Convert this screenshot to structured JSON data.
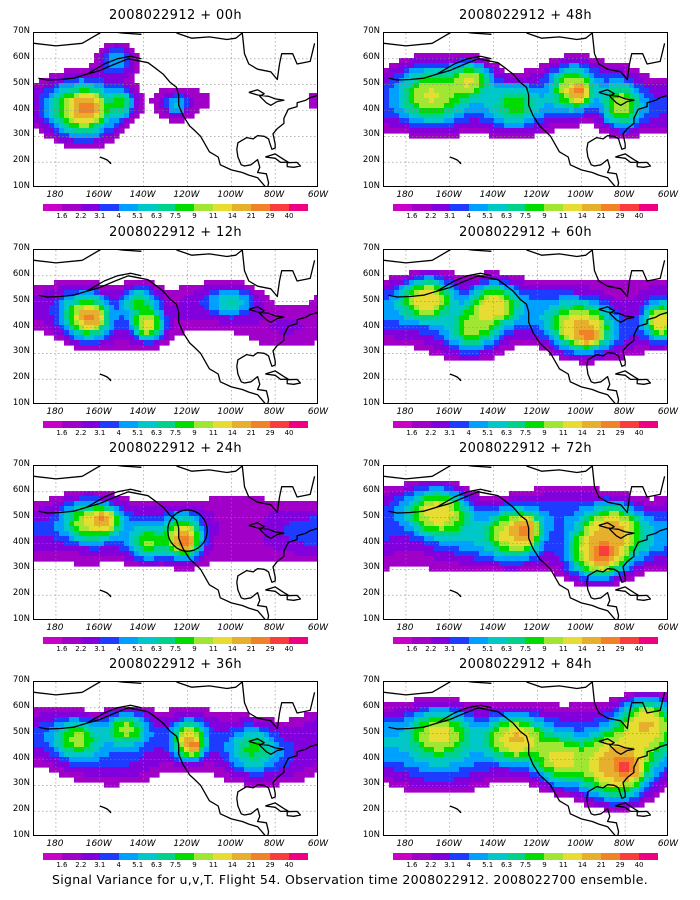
{
  "panels": [
    {
      "title": "2008022912 + 00h",
      "lead": "00h",
      "col": 0,
      "row": 0,
      "level": 0.1,
      "blobs": [
        [
          -168,
          40,
          14,
          10,
          11
        ],
        [
          -166,
          41,
          5,
          4,
          16
        ],
        [
          -150,
          43,
          5,
          5,
          6
        ],
        [
          -152,
          60,
          8,
          6,
          4
        ],
        [
          -125,
          42,
          5,
          4,
          4
        ]
      ],
      "circle": null
    },
    {
      "title": "2008022912 + 48h",
      "lead": "48h",
      "col": 1,
      "row": 0,
      "level": 0.45,
      "blobs": [
        [
          -168,
          45,
          14,
          10,
          9
        ],
        [
          -150,
          52,
          8,
          6,
          8
        ],
        [
          -104,
          48,
          9,
          8,
          9
        ],
        [
          -101,
          47,
          3,
          3,
          14
        ],
        [
          -82,
          42,
          8,
          8,
          8
        ],
        [
          -130,
          42,
          12,
          8,
          5
        ]
      ],
      "circle": null
    },
    {
      "title": "2008022912 + 12h",
      "lead": "12h",
      "col": 0,
      "row": 1,
      "level": 0.3,
      "blobs": [
        [
          -166,
          44,
          10,
          8,
          10
        ],
        [
          -164,
          44,
          4,
          3,
          13
        ],
        [
          -138,
          41,
          6,
          5,
          10
        ],
        [
          -142,
          50,
          8,
          6,
          6
        ],
        [
          -100,
          50,
          10,
          5,
          4
        ]
      ],
      "circle": null
    },
    {
      "title": "2008022912 + 60h",
      "lead": "60h",
      "col": 1,
      "row": 1,
      "level": 0.6,
      "blobs": [
        [
          -170,
          51,
          10,
          7,
          11
        ],
        [
          -140,
          49,
          9,
          7,
          10
        ],
        [
          -100,
          40,
          12,
          8,
          12
        ],
        [
          -97,
          37,
          4,
          3,
          15
        ],
        [
          -64,
          42,
          6,
          6,
          10
        ],
        [
          -150,
          40,
          10,
          8,
          7
        ]
      ],
      "circle": null
    },
    {
      "title": "2008022912 + 24h",
      "lead": "24h",
      "col": 0,
      "row": 2,
      "level": 0.45,
      "blobs": [
        [
          -164,
          48,
          12,
          7,
          10
        ],
        [
          -158,
          49,
          4,
          3,
          13
        ],
        [
          -122,
          42,
          7,
          7,
          11
        ],
        [
          -121,
          41,
          3,
          3,
          15
        ],
        [
          -138,
          40,
          8,
          6,
          6
        ]
      ],
      "circle": [
        -120,
        45,
        9,
        8
      ]
    },
    {
      "title": "2008022912 + 72h",
      "lead": "72h",
      "col": 1,
      "row": 2,
      "level": 0.75,
      "blobs": [
        [
          -165,
          52,
          12,
          8,
          10
        ],
        [
          -130,
          44,
          10,
          8,
          10
        ],
        [
          -125,
          45,
          4,
          4,
          13
        ],
        [
          -92,
          37,
          12,
          9,
          13
        ],
        [
          -90,
          36,
          4,
          4,
          17
        ],
        [
          -85,
          46,
          10,
          8,
          9
        ]
      ],
      "circle": null
    },
    {
      "title": "2008022912 + 36h",
      "lead": "36h",
      "col": 0,
      "row": 3,
      "level": 0.5,
      "blobs": [
        [
          -170,
          48,
          10,
          7,
          7
        ],
        [
          -148,
          52,
          9,
          6,
          8
        ],
        [
          -119,
          47,
          6,
          6,
          12
        ],
        [
          -117,
          45,
          2,
          2,
          16
        ],
        [
          -90,
          45,
          10,
          8,
          5
        ]
      ],
      "circle": null
    },
    {
      "title": "2008022912 + 84h",
      "lead": "84h",
      "col": 1,
      "row": 3,
      "level": 0.9,
      "blobs": [
        [
          -165,
          50,
          12,
          8,
          10
        ],
        [
          -130,
          48,
          10,
          7,
          9
        ],
        [
          -84,
          38,
          14,
          12,
          13
        ],
        [
          -80,
          37,
          5,
          4,
          18
        ],
        [
          -70,
          55,
          10,
          8,
          10
        ],
        [
          -110,
          40,
          10,
          8,
          8
        ]
      ],
      "circle": null
    }
  ],
  "axes": {
    "lon_ticks": [
      "180",
      "160W",
      "140W",
      "120W",
      "100W",
      "80W",
      "60W"
    ],
    "lat_ticks": [
      "10N",
      "20N",
      "30N",
      "40N",
      "50N",
      "60N",
      "70N"
    ],
    "lon_range": [
      -190,
      -60
    ],
    "lat_range": [
      10,
      70
    ]
  },
  "colorbar": {
    "labels": [
      "1.6",
      "2.2",
      "3.1",
      "4",
      "5.1",
      "6.3",
      "7.5",
      "9",
      "11",
      "14",
      "21",
      "29",
      "40"
    ],
    "colors": [
      "#a000c8",
      "#8200dc",
      "#1e3cff",
      "#00a0ff",
      "#00c8c8",
      "#00d28c",
      "#00dc00",
      "#a0e632",
      "#e6dc32",
      "#e6af2d",
      "#f08228",
      "#fa3c3c",
      "#f00082"
    ]
  },
  "caption": "Signal Variance for u,v,T. Flight 54. Observation time 2008022912. 2008022700 ensemble."
}
